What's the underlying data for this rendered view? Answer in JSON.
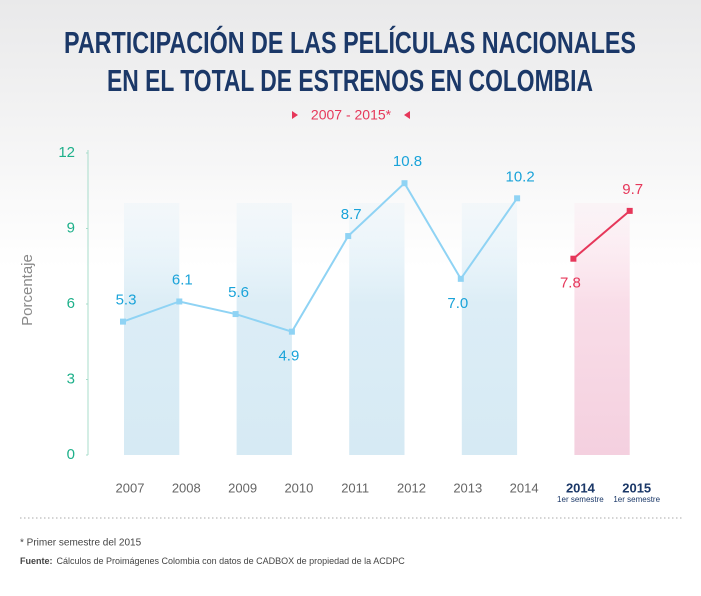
{
  "chart_data": {
    "type": "line",
    "title": [
      "PARTICIPACIÓN DE LAS PELÍCULAS NACIONALES",
      "EN EL TOTAL DE ESTRENOS EN COLOMBIA"
    ],
    "subtitle": "2007 - 2015*",
    "y_label": "Porcentaje",
    "categories": [
      "2007",
      "2008",
      "2009",
      "2010",
      "2011",
      "2012",
      "2013",
      "2014",
      "2014",
      "2015"
    ],
    "category_sublabels": [
      null,
      null,
      null,
      null,
      null,
      null,
      null,
      null,
      "1er semestre",
      "1er semestre"
    ],
    "series": [
      {
        "color": "#8fd3f4",
        "label_color": "#1aa3d9",
        "values": [
          5.3,
          6.1,
          5.6,
          4.9,
          8.7,
          10.8,
          7.0,
          10.2,
          null,
          null
        ],
        "value_labels": [
          "5.3",
          "6.1",
          "5.6",
          "4.9",
          "8.7",
          "10.8",
          "7.0",
          "10.2",
          null,
          null
        ]
      },
      {
        "color": "#e6375a",
        "label_color": "#e6375a",
        "values": [
          null,
          null,
          null,
          null,
          null,
          null,
          null,
          null,
          7.8,
          9.7
        ],
        "value_labels": [
          null,
          null,
          null,
          null,
          null,
          null,
          null,
          null,
          "7.8",
          "9.7"
        ]
      }
    ],
    "ylim": [
      0,
      12
    ],
    "yticks": [
      0,
      3,
      6,
      9,
      12
    ],
    "footnote": "* Primer semestre del 2015",
    "source_label": "Fuente:",
    "source": "Cálculos de Proimágenes Colombia con datos de CADBOX de propiedad de la ACDPC"
  }
}
